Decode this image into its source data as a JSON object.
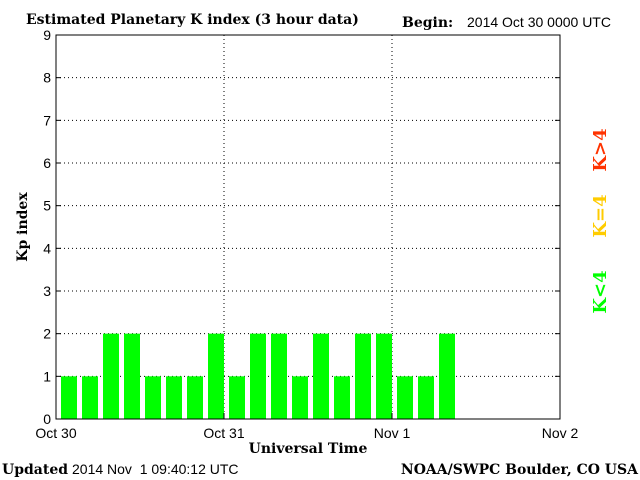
{
  "header": {
    "title": "Estimated Planetary K index (3 hour data)",
    "begin_label": "Begin:",
    "begin_value": "2014 Oct 30 0000 UTC"
  },
  "footer": {
    "updated_label": "Updated",
    "updated_value": "2014 Nov  1 09:40:12 UTC",
    "credit": "NOAA/SWPC Boulder, CO USA"
  },
  "legend": {
    "above": "K>4",
    "equal": "K=4",
    "below": "K<4"
  },
  "colors": {
    "below": "#00ff00",
    "equal": "#ffcc00",
    "above": "#ff3300"
  },
  "chart_data": {
    "type": "bar",
    "xlabel": "Universal Time",
    "ylabel": "Kp index",
    "ylim": [
      0,
      9
    ],
    "yticks": [
      "0",
      "1",
      "2",
      "3",
      "4",
      "5",
      "6",
      "7",
      "8",
      "9"
    ],
    "xticks": [
      "Oct 30",
      "Oct 31",
      "Nov 1",
      "Nov 2"
    ],
    "grid": "dotted",
    "bar_interval_hours": 3,
    "x_span_hours": 72,
    "values": [
      1,
      1,
      2,
      2,
      1,
      1,
      1,
      2,
      1,
      2,
      2,
      1,
      2,
      1,
      2,
      2,
      1,
      1,
      2
    ]
  }
}
